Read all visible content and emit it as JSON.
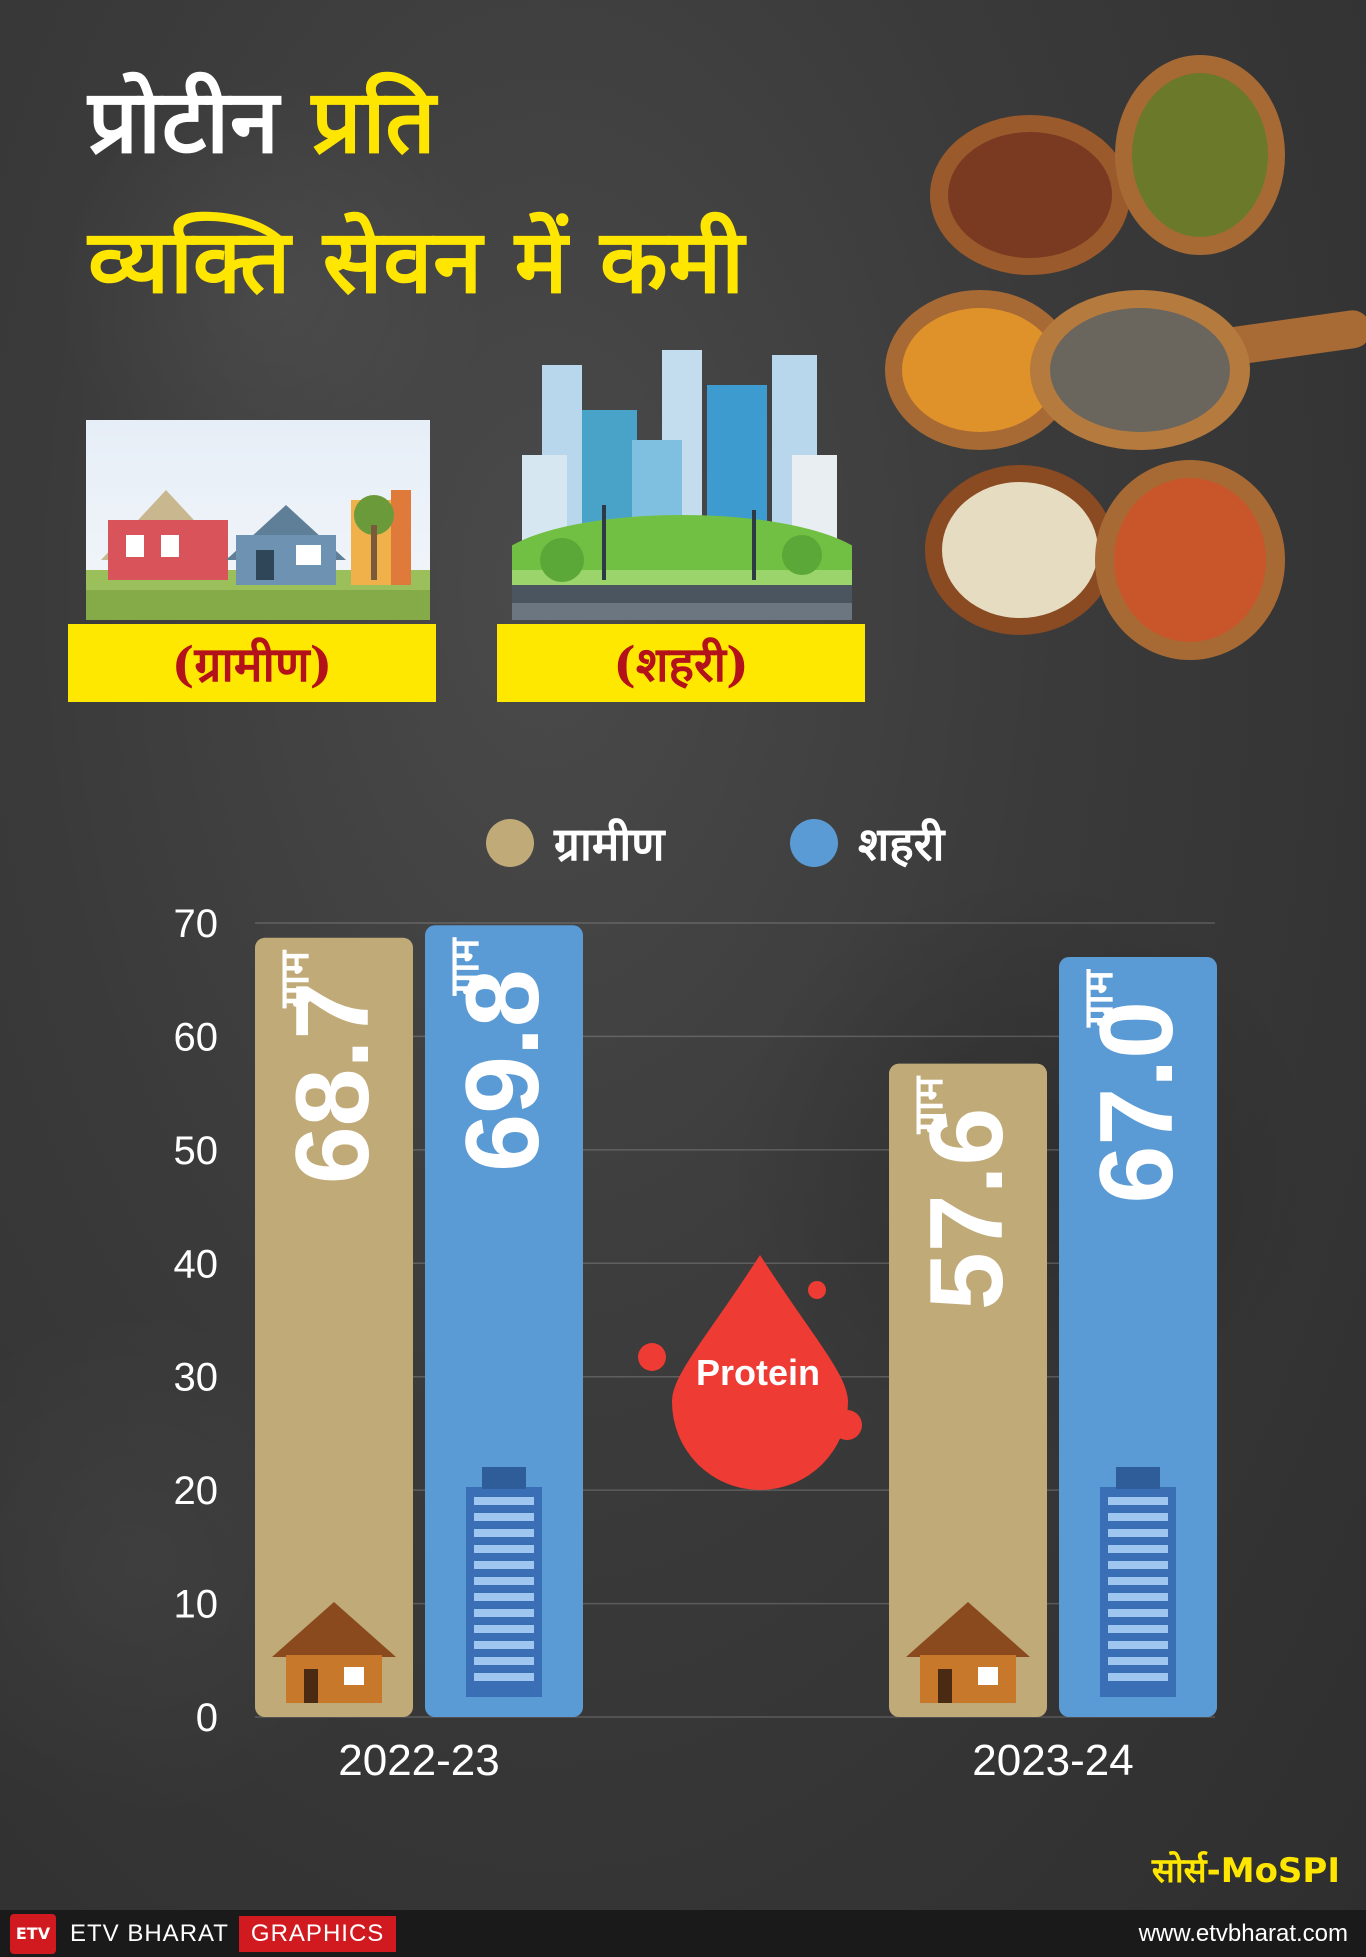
{
  "title": {
    "line1_part1": "प्रोटीन",
    "line1_part2": "प्रति",
    "line2": "व्यक्ति सेवन में कमी"
  },
  "categories_boxes": {
    "rural": "(ग्रामीण)",
    "urban": "(शहरी)"
  },
  "legend": {
    "rural": "ग्रामीण",
    "urban": "शहरी"
  },
  "colors": {
    "rural": "#c0aa78",
    "urban": "#5b9bd5",
    "yellow": "#ffe800"
  },
  "chart_data": {
    "type": "bar",
    "categories": [
      "2022-23",
      "2023-24"
    ],
    "series": [
      {
        "name": "ग्रामीण",
        "values": [
          68.7,
          57.6
        ]
      },
      {
        "name": "शहरी",
        "values": [
          69.8,
          67.0
        ]
      }
    ],
    "value_labels": [
      [
        "68.7",
        "69.8"
      ],
      [
        "57.6",
        "67.0"
      ]
    ],
    "unit": "ग्राम",
    "ylim": [
      0,
      70
    ],
    "yticks": [
      0,
      10,
      20,
      30,
      40,
      50,
      60,
      70
    ],
    "grid": true,
    "legend_position": "top"
  },
  "badge": "Protein",
  "source": "सोर्स-MoSPI",
  "footer": {
    "logo": "ETV",
    "brand": "ETV BHARAT",
    "graphics": "GRAPHICS",
    "website": "www.etvbharat.com"
  }
}
